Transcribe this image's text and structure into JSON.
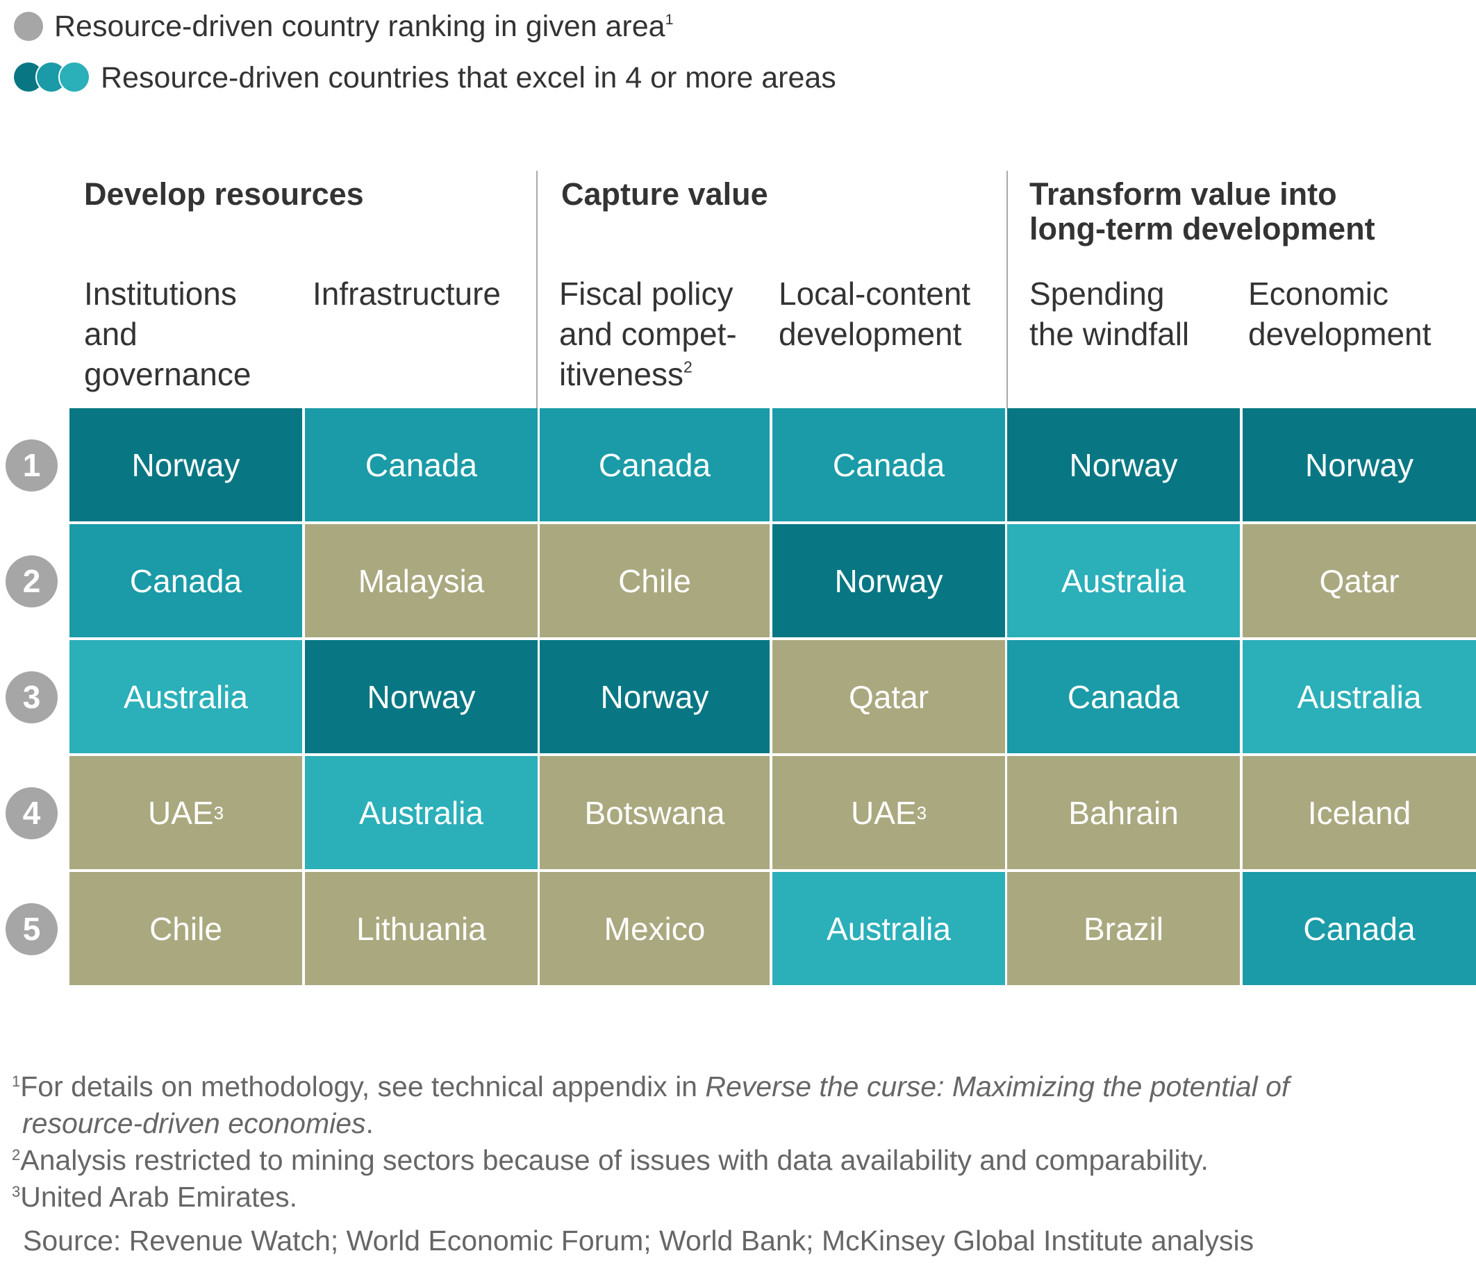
{
  "legend": {
    "item1": {
      "text": "Resource-driven country ranking in given area",
      "sup": "1",
      "icon": "grey-circle-icon",
      "color": "#a6a6a6"
    },
    "item2": {
      "text": "Resource-driven countries that excel in 4 or more areas",
      "icon": "three-teal-circles-icon",
      "colors": [
        "#087783",
        "#1a9ba7",
        "#2bafb9"
      ]
    }
  },
  "colors": {
    "Norway": "#087783",
    "Canada": "#1a9ba7",
    "Australia": "#2bafb9",
    "other": "#aaa87f",
    "rank": "#a6a6a6"
  },
  "chart_data": {
    "type": "table",
    "groups": [
      {
        "title": "Develop resources",
        "columns": [
          0,
          1
        ]
      },
      {
        "title": "Capture value",
        "columns": [
          2,
          3
        ]
      },
      {
        "title": "Transform value into long-term development",
        "title_lines": [
          "Transform value into",
          "long-term development"
        ],
        "columns": [
          4,
          5
        ]
      }
    ],
    "columns": [
      {
        "lines": [
          "Institutions",
          "and",
          "governance"
        ],
        "sup": ""
      },
      {
        "lines": [
          "Infrastructure"
        ],
        "sup": ""
      },
      {
        "lines": [
          "Fiscal policy",
          "and compet-",
          "itiveness"
        ],
        "sup": "2"
      },
      {
        "lines": [
          "Local-content",
          "development"
        ],
        "sup": ""
      },
      {
        "lines": [
          "Spending",
          "the windfall"
        ],
        "sup": ""
      },
      {
        "lines": [
          "Economic",
          "development"
        ],
        "sup": ""
      }
    ],
    "ranks": [
      "1",
      "2",
      "3",
      "4",
      "5"
    ],
    "rows": [
      [
        {
          "country": "Norway"
        },
        {
          "country": "Canada"
        },
        {
          "country": "Canada"
        },
        {
          "country": "Canada"
        },
        {
          "country": "Norway"
        },
        {
          "country": "Norway"
        }
      ],
      [
        {
          "country": "Canada"
        },
        {
          "country": "Malaysia"
        },
        {
          "country": "Chile"
        },
        {
          "country": "Norway"
        },
        {
          "country": "Australia"
        },
        {
          "country": "Qatar"
        }
      ],
      [
        {
          "country": "Australia"
        },
        {
          "country": "Norway"
        },
        {
          "country": "Norway"
        },
        {
          "country": "Qatar"
        },
        {
          "country": "Canada"
        },
        {
          "country": "Australia"
        }
      ],
      [
        {
          "country": "UAE",
          "sup": "3"
        },
        {
          "country": "Australia"
        },
        {
          "country": "Botswana"
        },
        {
          "country": "UAE",
          "sup": "3"
        },
        {
          "country": "Bahrain"
        },
        {
          "country": "Iceland"
        }
      ],
      [
        {
          "country": "Chile"
        },
        {
          "country": "Lithuania"
        },
        {
          "country": "Mexico"
        },
        {
          "country": "Australia"
        },
        {
          "country": "Brazil"
        },
        {
          "country": "Canada"
        }
      ]
    ]
  },
  "footnotes": {
    "fn1": {
      "sup": "1",
      "text": "For details on methodology, see technical appendix in ",
      "italic": "Reverse the curse: Maximizing the potential of",
      "line2_italic": "resource-driven economies",
      "line2_end": "."
    },
    "fn2": {
      "sup": "2",
      "text": "Analysis restricted to mining sectors because of issues with data availability and comparability."
    },
    "fn3": {
      "sup": "3",
      "text": "United Arab Emirates."
    },
    "source": "Source: Revenue Watch; World Economic Forum; World Bank; McKinsey Global Institute analysis"
  }
}
